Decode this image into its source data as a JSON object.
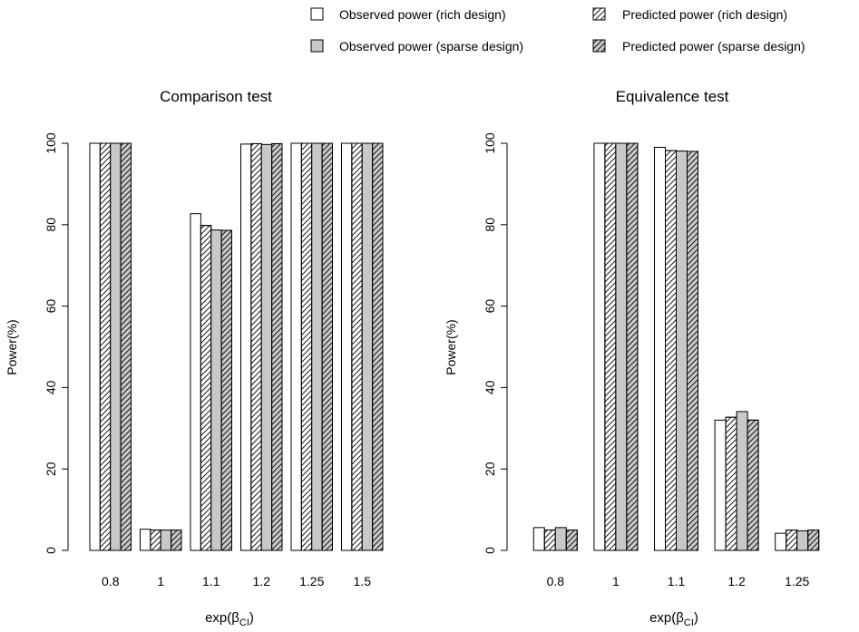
{
  "legend": {
    "items": [
      {
        "label": "Observed power (rich design)",
        "fill": "#ffffff",
        "hatch": false
      },
      {
        "label": "Predicted power (rich design)",
        "fill": "#ffffff",
        "hatch": true
      },
      {
        "label": "Observed power (sparse design)",
        "fill": "#c8c8c8",
        "hatch": false
      },
      {
        "label": "Predicted power  (sparse design)",
        "fill": "#c8c8c8",
        "hatch": true
      }
    ]
  },
  "chart_data": [
    {
      "type": "bar",
      "title": "Comparison test",
      "ylabel": "Power(%)",
      "xlabel": "exp(βCI)",
      "xlabel_base": "exp(β",
      "xlabel_sub": "CI",
      "xlabel_close": ")",
      "ylim": [
        0,
        100
      ],
      "yticks": [
        0,
        20,
        40,
        60,
        80,
        100
      ],
      "categories": [
        "0.8",
        "1",
        "1.1",
        "1.2",
        "1.25",
        "1.5"
      ],
      "series": [
        {
          "name": "Observed power (rich design)",
          "values": [
            100,
            5.2,
            82.7,
            99.8,
            100,
            100
          ]
        },
        {
          "name": "Predicted power (rich design)",
          "values": [
            100,
            5.0,
            79.8,
            99.9,
            100,
            100
          ]
        },
        {
          "name": "Observed power (sparse design)",
          "values": [
            100,
            5.0,
            78.7,
            99.7,
            100,
            100
          ]
        },
        {
          "name": "Predicted power  (sparse design)",
          "values": [
            100,
            5.0,
            78.6,
            99.9,
            100,
            100
          ]
        }
      ]
    },
    {
      "type": "bar",
      "title": "Equivalence test",
      "ylabel": "Power(%)",
      "xlabel": "exp(βCI)",
      "xlabel_base": "exp(β",
      "xlabel_sub": "CI",
      "xlabel_close": ")",
      "ylim": [
        0,
        100
      ],
      "yticks": [
        0,
        20,
        40,
        60,
        80,
        100
      ],
      "categories": [
        "0.8",
        "1",
        "1.1",
        "1.2",
        "1.25"
      ],
      "series": [
        {
          "name": "Observed power (rich design)",
          "values": [
            5.6,
            100,
            99.0,
            32.0,
            4.2
          ]
        },
        {
          "name": "Predicted power (rich design)",
          "values": [
            5.0,
            100,
            98.2,
            32.7,
            5.0
          ]
        },
        {
          "name": "Observed power (sparse design)",
          "values": [
            5.6,
            100,
            98.1,
            34.1,
            4.8
          ]
        },
        {
          "name": "Predicted power  (sparse design)",
          "values": [
            5.0,
            100,
            98.0,
            32.0,
            5.0
          ]
        }
      ]
    }
  ]
}
